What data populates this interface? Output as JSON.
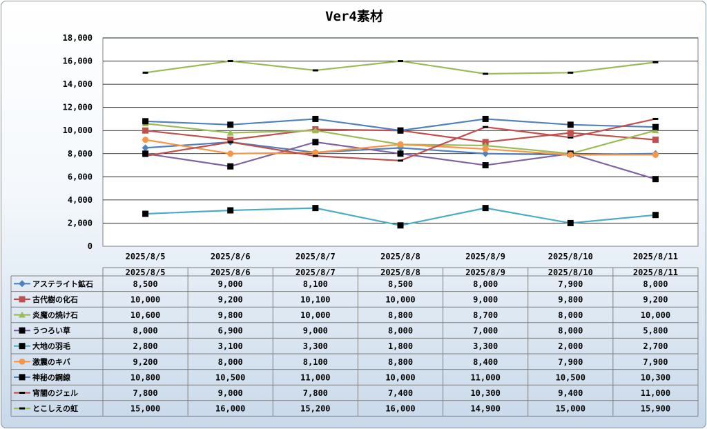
{
  "chart_data": {
    "type": "line",
    "title": "Ver4素材",
    "categories": [
      "2025/8/5",
      "2025/8/6",
      "2025/8/7",
      "2025/8/8",
      "2025/8/9",
      "2025/8/10",
      "2025/8/11"
    ],
    "ylim": [
      0,
      18000
    ],
    "ytick_labels": [
      "0",
      "2,000",
      "4,000",
      "6,000",
      "8,000",
      "10,000",
      "12,000",
      "14,000",
      "16,000",
      "18,000"
    ],
    "grid": true,
    "legend": "data-table",
    "series": [
      {
        "name": "アステライト鉱石",
        "color": "#4f81bd",
        "marker": "diamond",
        "values": [
          8500,
          9000,
          8100,
          8500,
          8000,
          7900,
          8000
        ],
        "labels": [
          "8,500",
          "9,000",
          "8,100",
          "8,500",
          "8,000",
          "7,900",
          "8,000"
        ]
      },
      {
        "name": "古代樹の化石",
        "color": "#c0504d",
        "marker": "square",
        "values": [
          10000,
          9200,
          10100,
          10000,
          9000,
          9800,
          9200
        ],
        "labels": [
          "10,000",
          "9,200",
          "10,100",
          "10,000",
          "9,000",
          "9,800",
          "9,200"
        ]
      },
      {
        "name": "炎魔の焼け石",
        "color": "#9bbb59",
        "marker": "triangle",
        "values": [
          10600,
          9800,
          10000,
          8800,
          8700,
          8000,
          10000
        ],
        "labels": [
          "10,600",
          "9,800",
          "10,000",
          "8,800",
          "8,700",
          "8,000",
          "10,000"
        ]
      },
      {
        "name": "うつろい草",
        "color": "#8064a2",
        "marker": "square-black",
        "values": [
          8000,
          6900,
          9000,
          8000,
          7000,
          8000,
          5800
        ],
        "labels": [
          "8,000",
          "6,900",
          "9,000",
          "8,000",
          "7,000",
          "8,000",
          "5,800"
        ]
      },
      {
        "name": "大地の羽毛",
        "color": "#4bacc6",
        "marker": "square-black",
        "values": [
          2800,
          3100,
          3300,
          1800,
          3300,
          2000,
          2700
        ],
        "labels": [
          "2,800",
          "3,100",
          "3,300",
          "1,800",
          "3,300",
          "2,000",
          "2,700"
        ]
      },
      {
        "name": "激震のキバ",
        "color": "#f79646",
        "marker": "circle",
        "values": [
          9200,
          8000,
          8100,
          8800,
          8400,
          7900,
          7900
        ],
        "labels": [
          "9,200",
          "8,000",
          "8,100",
          "8,800",
          "8,400",
          "7,900",
          "7,900"
        ]
      },
      {
        "name": "神秘の鋼線",
        "color": "#4f81bd",
        "marker": "square-black",
        "values": [
          10800,
          10500,
          11000,
          10000,
          11000,
          10500,
          10300
        ],
        "labels": [
          "10,800",
          "10,500",
          "11,000",
          "10,000",
          "11,000",
          "10,500",
          "10,300"
        ]
      },
      {
        "name": "宵闇のジェル",
        "color": "#c0504d",
        "marker": "dash",
        "values": [
          7800,
          9000,
          7800,
          7400,
          10300,
          9400,
          11000
        ],
        "labels": [
          "7,800",
          "9,000",
          "7,800",
          "7,400",
          "10,300",
          "9,400",
          "11,000"
        ]
      },
      {
        "name": "とこしえの虹",
        "color": "#9bbb59",
        "marker": "dash",
        "values": [
          15000,
          16000,
          15200,
          16000,
          14900,
          15000,
          15900
        ],
        "labels": [
          "15,000",
          "16,000",
          "15,200",
          "16,000",
          "14,900",
          "15,000",
          "15,900"
        ]
      }
    ]
  }
}
